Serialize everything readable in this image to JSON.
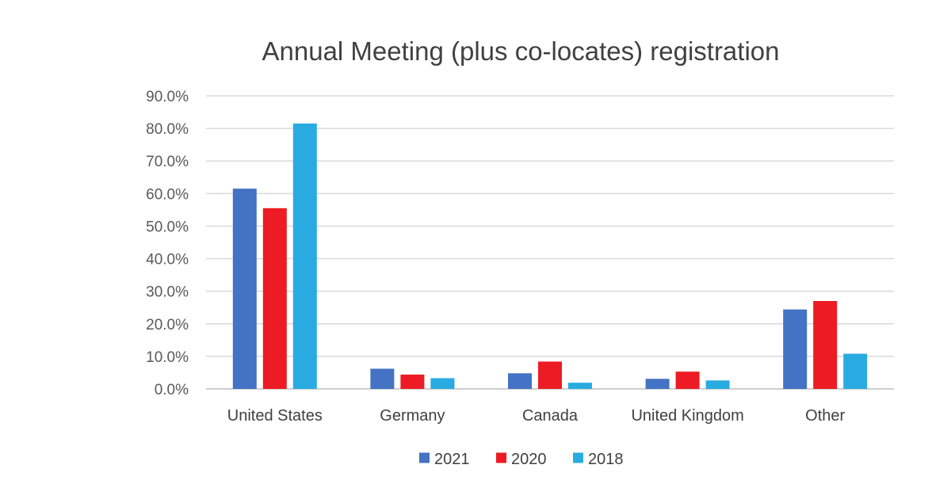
{
  "chart_data": {
    "type": "bar",
    "title": "Annual Meeting (plus co-locates) registration",
    "xlabel": "",
    "ylabel": "",
    "categories": [
      "United States",
      "Germany",
      "Canada",
      "United Kingdom",
      "Other"
    ],
    "series": [
      {
        "name": "2021",
        "color": "#4472C4",
        "values": [
          61.5,
          6.2,
          4.8,
          3.1,
          24.4
        ]
      },
      {
        "name": "2020",
        "color": "#ED1C24",
        "values": [
          55.5,
          4.4,
          8.4,
          5.3,
          27.0
        ]
      },
      {
        "name": "2018",
        "color": "#29ABE2",
        "values": [
          81.5,
          3.3,
          1.9,
          2.6,
          10.8
        ]
      }
    ],
    "ylim": [
      0,
      90
    ],
    "yticks": [
      "0.0%",
      "10.0%",
      "20.0%",
      "30.0%",
      "40.0%",
      "50.0%",
      "60.0%",
      "70.0%",
      "80.0%",
      "90.0%"
    ],
    "grid": true,
    "legend_position": "bottom"
  }
}
